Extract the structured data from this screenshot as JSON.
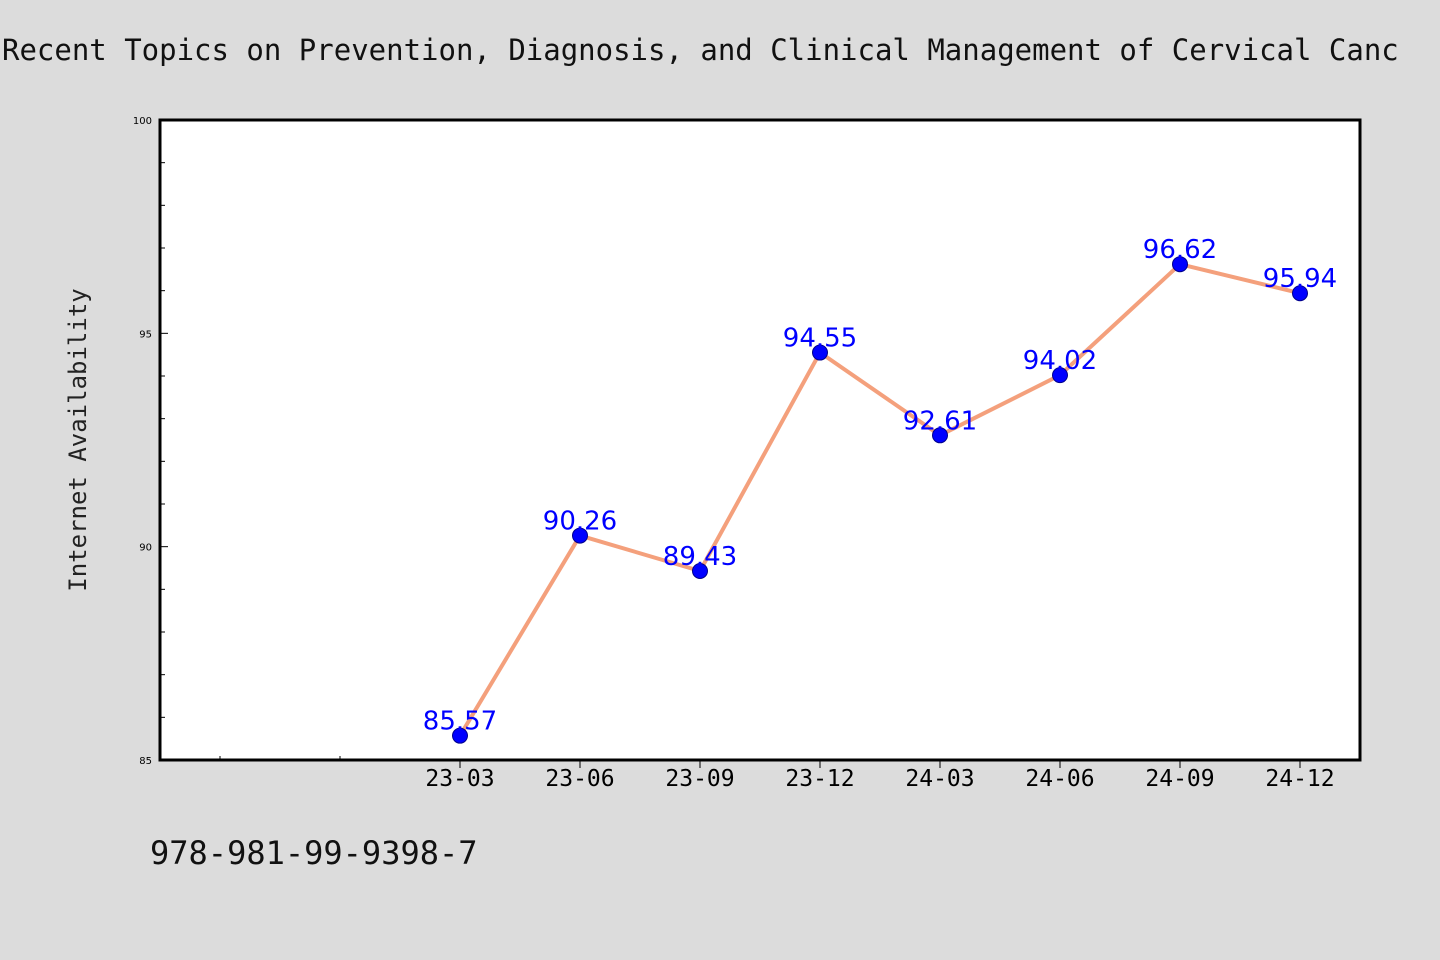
{
  "page": {
    "background": "#dcdcdc",
    "footer_text": "978-981-99-9398-7"
  },
  "chart_data": {
    "type": "line",
    "title": "Recent Topics on Prevention, Diagnosis, and Clinical Management of Cervical Canc",
    "xlabel": "",
    "ylabel": "Internet Availability",
    "categories": [
      "23-03",
      "23-06",
      "23-09",
      "23-12",
      "24-03",
      "24-06",
      "24-09",
      "24-12"
    ],
    "series": [
      {
        "values": [
          85.57,
          90.26,
          89.43,
          94.55,
          92.61,
          94.02,
          96.62,
          95.94
        ],
        "line_color": "#f4a07c",
        "marker_color": "#0000ff"
      }
    ],
    "data_labels": [
      "85.57",
      "90.26",
      "89.43",
      "94.55",
      "92.61",
      "94.02",
      "96.62",
      "95.94"
    ],
    "label_color": "#0000ff",
    "ylim": [
      85,
      100
    ],
    "y_ticks": [
      "85",
      "90",
      "95",
      "100"
    ],
    "grid": false,
    "legend": "none"
  }
}
